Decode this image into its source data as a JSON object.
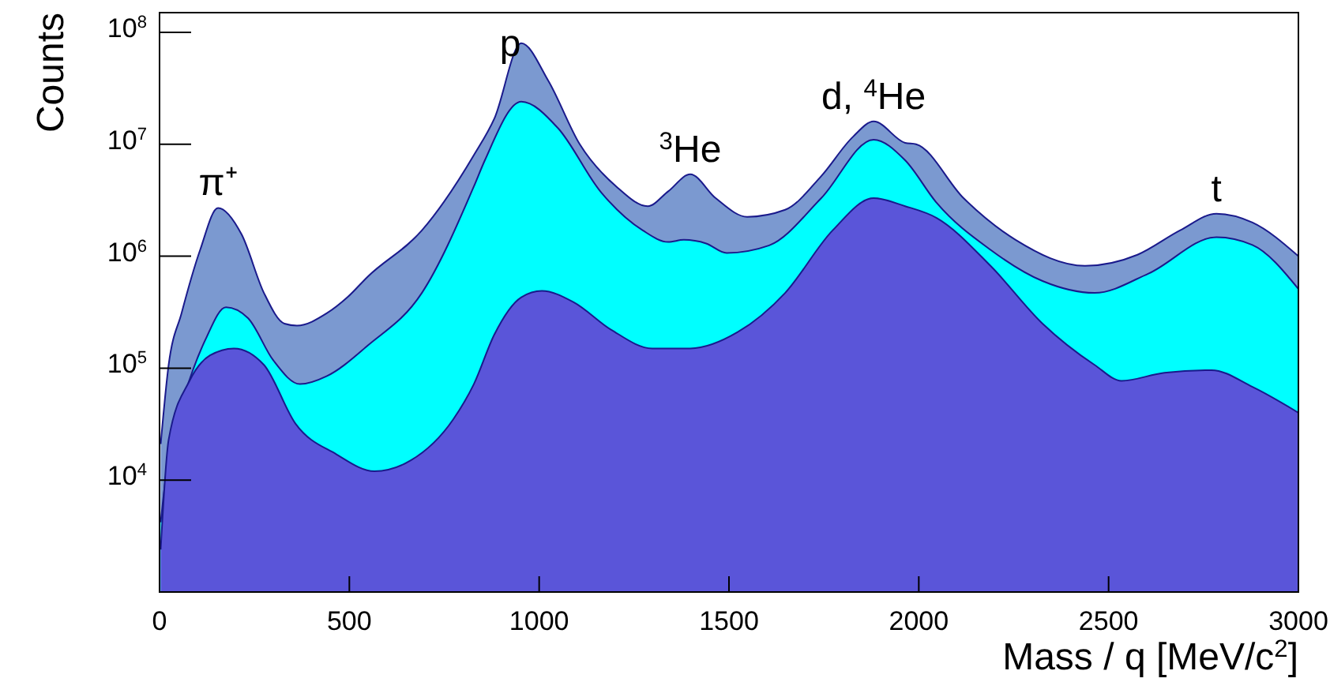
{
  "chart_data": {
    "type": "area",
    "xlabel": "Mass / q [MeV/c$^{2}$]",
    "ylabel": "Counts",
    "log": "y",
    "xlim": [
      0,
      3000
    ],
    "ylim": [
      1000,
      150000000
    ],
    "xticks": [
      0,
      500,
      1000,
      1500,
      2000,
      2500,
      3000
    ],
    "yticks": [
      {
        "value": 10000,
        "label": "10$^{4}$"
      },
      {
        "value": 100000,
        "label": "10$^{5}$"
      },
      {
        "value": 1000000,
        "label": "10$^{6}$"
      },
      {
        "value": 10000000,
        "label": "10$^{7}$"
      },
      {
        "value": 100000000,
        "label": "10$^{8}$"
      }
    ],
    "series": [
      {
        "color": "#7b99d0",
        "x": [
          3,
          24,
          58,
          107,
          154,
          216,
          275,
          329,
          362,
          441,
          495,
          549,
          691,
          828,
          882,
          953,
          1024,
          1107,
          1203,
          1286,
          1340,
          1398,
          1465,
          1548,
          1648,
          1743,
          1827,
          1881,
          1964,
          1993,
          2118,
          2255,
          2438,
          2576,
          2688,
          2784,
          2879,
          3000
        ],
        "values": [
          21000,
          107000,
          310000,
          1140000,
          2700000,
          1570000,
          470000,
          250000,
          240000,
          310000,
          430000,
          660000,
          1700000,
          8000000,
          17000000,
          80000000,
          37000000,
          10000000,
          4200000,
          2800000,
          3800000,
          5400000,
          3300000,
          2250000,
          2600000,
          5200000,
          11700000,
          16000000,
          10300000,
          10000000,
          3300000,
          1400000,
          820000,
          1030000,
          1700000,
          2400000,
          2000000,
          1000000
        ]
      },
      {
        "color": "#00ffff",
        "x": [
          3,
          24,
          65,
          121,
          175,
          233,
          300,
          370,
          441,
          549,
          691,
          828,
          857,
          953,
          1049,
          1161,
          1273,
          1340,
          1381,
          1440,
          1494,
          1606,
          1743,
          1881,
          1964,
          2047,
          2189,
          2326,
          2463,
          2605,
          2784,
          2879,
          3000
        ],
        "values": [
          4200,
          17000,
          56000,
          180000,
          350000,
          280000,
          117000,
          72000,
          85000,
          160000,
          470000,
          4200000,
          7200000,
          24000000,
          14000000,
          3800000,
          1700000,
          1340000,
          1400000,
          1300000,
          1070000,
          1250000,
          3300000,
          11000000,
          7200000,
          3000000,
          1140000,
          600000,
          470000,
          700000,
          1480000,
          1260000,
          510000
        ]
      },
      {
        "color": "#5a55d9",
        "x": [
          3,
          24,
          79,
          133,
          196,
          275,
          358,
          466,
          566,
          662,
          774,
          828,
          882,
          953,
          1007,
          1090,
          1190,
          1298,
          1398,
          1523,
          1648,
          1773,
          1881,
          1964,
          2047,
          2189,
          2326,
          2463,
          2534,
          2647,
          2771,
          2879,
          3000
        ],
        "values": [
          2400,
          23000,
          77000,
          130000,
          150000,
          107000,
          32000,
          17000,
          12000,
          15000,
          35000,
          72000,
          200000,
          430000,
          490000,
          390000,
          220000,
          150000,
          150000,
          210000,
          470000,
          1700000,
          3300000,
          2800000,
          2200000,
          820000,
          250000,
          107000,
          77000,
          91000,
          96000,
          68000,
          40000
        ]
      }
    ],
    "annotations": [
      {
        "text": "π⁺",
        "x": 154,
        "y": 2700000
      },
      {
        "text": "p",
        "x": 924,
        "y": 47000000
      },
      {
        "text": "$^{3}$He",
        "x": 1398,
        "y": 5400000
      },
      {
        "text": "d, $^{4}$He",
        "x": 1881,
        "y": 16000000
      },
      {
        "text": "t",
        "x": 2784,
        "y": 2400000
      }
    ]
  }
}
